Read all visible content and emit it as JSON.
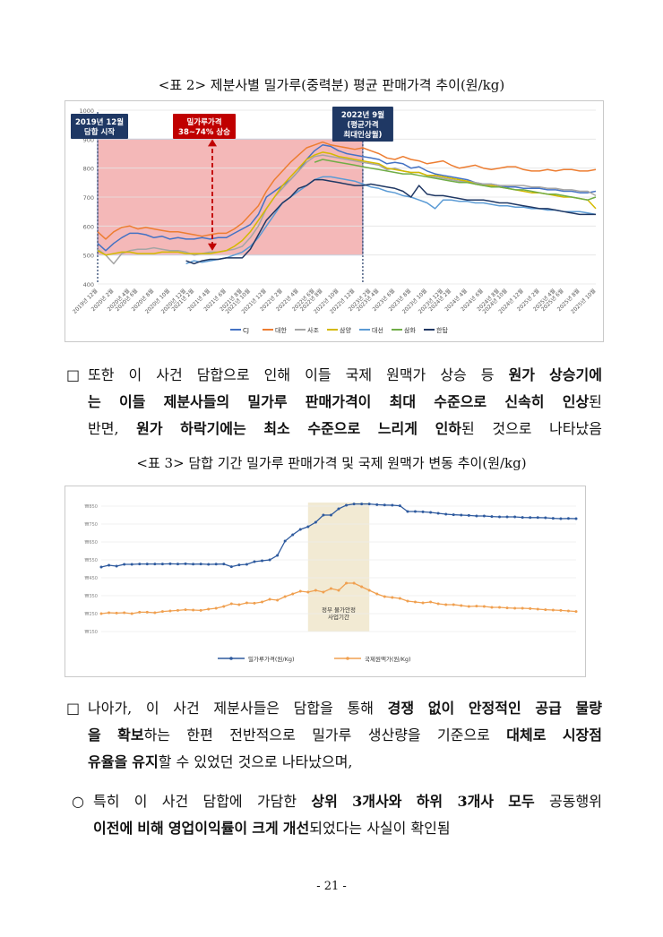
{
  "table2": {
    "caption": "<표 2> 제분사별 밀가루(중력분) 평균 판매가격 추이(원/kg)",
    "annotations": {
      "start": [
        "2019년 12월",
        "담합 시작"
      ],
      "rise": [
        "밀가루가격",
        "38~74% 상승"
      ],
      "peak": [
        "2022년 9월",
        "(평균가격",
        "최대인상월)"
      ]
    },
    "colors": {
      "annot_box": "#1f3864",
      "rise_box": "#c00000",
      "shade": "#f4b8b8"
    },
    "chart_data": {
      "type": "line",
      "ylim": [
        400,
        1000
      ],
      "yticks": [
        "400",
        "500",
        "600",
        "700",
        "800",
        "900",
        "1000"
      ],
      "xticks": [
        "2019년 12월",
        "2020년 2월",
        "2020년 4월",
        "2020년 6월",
        "2020년 8월",
        "2020년 10월",
        "2020년 12월",
        "2021년 2월",
        "2021년 4월",
        "2021년 6월",
        "2021년 8월",
        "2021년 10월",
        "2021년 12월",
        "2022년 2월",
        "2022년 4월",
        "2022년 6월",
        "2022년 8월",
        "2022년 10월",
        "2022년 12월",
        "2023년 2월",
        "2023년 4월",
        "2023년 6월",
        "2023년 8월",
        "2023년 10월",
        "2023년 12월",
        "2024년 2월",
        "2024년 4월",
        "2024년 6월",
        "2024년 8월",
        "2024년 10월",
        "2024년 12월",
        "2025년 2월",
        "2025년 4월",
        "2025년 6월",
        "2025년 8월",
        "2025년 10월"
      ],
      "series": [
        {
          "name": "CJ",
          "color": "#4472c4",
          "values": [
            540,
            515,
            540,
            560,
            575,
            575,
            570,
            560,
            565,
            555,
            560,
            555,
            555,
            560,
            555,
            560,
            560,
            575,
            590,
            605,
            640,
            700,
            720,
            740,
            760,
            790,
            830,
            860,
            880,
            875,
            860,
            850,
            845,
            840,
            835,
            830,
            815,
            820,
            815,
            800,
            805,
            790,
            780,
            775,
            770,
            765,
            760,
            750,
            745,
            745,
            740,
            735,
            735,
            730,
            730,
            730,
            725,
            725,
            720,
            720,
            715,
            715,
            720
          ]
        },
        {
          "name": "대한",
          "color": "#ed7d31",
          "values": [
            580,
            555,
            580,
            595,
            600,
            590,
            595,
            590,
            585,
            580,
            580,
            575,
            570,
            565,
            570,
            575,
            575,
            590,
            610,
            640,
            670,
            720,
            760,
            790,
            820,
            845,
            870,
            880,
            890,
            880,
            875,
            870,
            865,
            870,
            860,
            850,
            835,
            830,
            840,
            830,
            825,
            815,
            820,
            825,
            810,
            800,
            805,
            810,
            800,
            795,
            800,
            805,
            805,
            795,
            790,
            790,
            795,
            790,
            795,
            795,
            790,
            790,
            795
          ]
        },
        {
          "name": "사조",
          "color": "#a5a5a5",
          "values": [
            520,
            500,
            470,
            505,
            515,
            520,
            520,
            525,
            520,
            515,
            515,
            510,
            500,
            505,
            510,
            510,
            515,
            520,
            530,
            560,
            600,
            660,
            700,
            730,
            760,
            790,
            820,
            840,
            845,
            840,
            835,
            830,
            825,
            820,
            815,
            810,
            795,
            800,
            790,
            785,
            785,
            775,
            770,
            765,
            760,
            755,
            755,
            750,
            745,
            745,
            740,
            740,
            740,
            740,
            735,
            735,
            730,
            730,
            725,
            725,
            720,
            720,
            705
          ]
        },
        {
          "name": "삼양",
          "color": "#d4b900",
          "values": [
            515,
            500,
            505,
            510,
            510,
            505,
            505,
            505,
            510,
            510,
            510,
            505,
            505,
            505,
            505,
            510,
            515,
            530,
            550,
            580,
            620,
            660,
            700,
            740,
            770,
            800,
            830,
            845,
            855,
            850,
            840,
            835,
            830,
            825,
            820,
            815,
            800,
            795,
            790,
            785,
            785,
            775,
            775,
            770,
            765,
            760,
            755,
            745,
            740,
            740,
            735,
            730,
            725,
            720,
            715,
            715,
            710,
            705,
            700,
            700,
            695,
            690,
            660
          ]
        },
        {
          "name": "대선",
          "color": "#5b9bd5",
          "values": [
            null,
            null,
            null,
            null,
            null,
            null,
            null,
            null,
            null,
            null,
            null,
            470,
            480,
            475,
            480,
            485,
            490,
            500,
            510,
            530,
            560,
            600,
            640,
            680,
            700,
            720,
            740,
            760,
            770,
            770,
            765,
            760,
            755,
            745,
            735,
            730,
            720,
            715,
            705,
            700,
            690,
            680,
            660,
            690,
            690,
            685,
            685,
            680,
            680,
            675,
            670,
            670,
            665,
            665,
            660,
            660,
            655,
            655,
            650,
            650,
            650,
            645,
            640
          ]
        },
        {
          "name": "삼화",
          "color": "#70ad47",
          "values": [
            null,
            null,
            null,
            null,
            null,
            null,
            null,
            null,
            null,
            null,
            null,
            null,
            null,
            null,
            null,
            null,
            null,
            null,
            null,
            null,
            null,
            null,
            null,
            null,
            null,
            null,
            null,
            820,
            830,
            825,
            820,
            815,
            810,
            805,
            800,
            795,
            790,
            785,
            780,
            780,
            775,
            770,
            765,
            760,
            755,
            750,
            750,
            745,
            740,
            735,
            735,
            730,
            725,
            725,
            720,
            715,
            710,
            710,
            705,
            700,
            695,
            690,
            700
          ]
        },
        {
          "name": "한탑",
          "color": "#203864",
          "values": [
            null,
            null,
            null,
            null,
            null,
            null,
            null,
            null,
            null,
            null,
            null,
            480,
            470,
            480,
            485,
            485,
            490,
            490,
            490,
            520,
            570,
            620,
            650,
            680,
            700,
            730,
            740,
            760,
            760,
            755,
            750,
            745,
            740,
            740,
            745,
            740,
            735,
            730,
            720,
            700,
            740,
            710,
            705,
            705,
            700,
            695,
            690,
            690,
            690,
            685,
            680,
            680,
            675,
            670,
            665,
            660,
            660,
            655,
            650,
            645,
            640,
            640,
            640
          ]
        }
      ]
    }
  },
  "para1": {
    "lines": [
      "또한 이 사건 담합으로 인해 이들 국제 원맥가 상승 등 원가 상승기에",
      "는 이들 제분사들의 밀가루 판매가격이 최대 수준으로 신속히 인상된",
      "반면, 원가 하락기에는 최소 수준으로 느리게 인하된 것으로 나타났음"
    ]
  },
  "table3": {
    "caption": "<표 3> 담합 기간 밀가루 판매가격 및 국제 원맥가 변동 추이(원/kg)",
    "period_label": [
      "정부 물가안정",
      "사업기간"
    ],
    "colors": {
      "period_shade": "#f2ead3"
    },
    "chart_data": {
      "type": "line",
      "ylim": [
        150,
        850
      ],
      "yticks": [
        "150",
        "250",
        "350",
        "450",
        "550",
        "650",
        "750",
        "850"
      ],
      "series": [
        {
          "name": "밀가루가격(원/Kg)",
          "color": "#2e5a9e",
          "values": [
            510,
            520,
            515,
            525,
            525,
            527,
            527,
            527,
            527,
            528,
            527,
            528,
            526,
            527,
            525,
            526,
            527,
            512,
            522,
            525,
            540,
            545,
            550,
            575,
            655,
            690,
            720,
            735,
            760,
            800,
            800,
            835,
            855,
            862,
            862,
            862,
            858,
            856,
            855,
            852,
            820,
            820,
            818,
            815,
            810,
            805,
            802,
            800,
            798,
            795,
            795,
            792,
            790,
            790,
            790,
            787,
            786,
            786,
            785,
            782,
            780,
            781,
            780
          ]
        },
        {
          "name": "국제원맥가(원/Kg)",
          "color": "#f0a050",
          "values": [
            250,
            255,
            253,
            255,
            250,
            258,
            258,
            255,
            262,
            265,
            268,
            272,
            270,
            268,
            275,
            280,
            290,
            305,
            300,
            310,
            308,
            315,
            330,
            325,
            345,
            360,
            375,
            370,
            380,
            370,
            390,
            380,
            420,
            420,
            400,
            380,
            360,
            345,
            340,
            335,
            320,
            315,
            310,
            315,
            305,
            300,
            300,
            295,
            290,
            292,
            290,
            285,
            285,
            282,
            280,
            280,
            278,
            275,
            272,
            270,
            268,
            265,
            262
          ]
        }
      ]
    }
  },
  "para2": {
    "lines": [
      "나아가, 이 사건 제분사들은 담합을 통해 경쟁 없이 안정적인 공급 물량",
      "을 확보하는 한편 전반적으로 밀가루 생산량을 기준으로 대체로 시장점",
      "유율을 유지할 수 있었던 것으로 나타났으며,"
    ]
  },
  "para3": {
    "lines": [
      "특히 이 사건 담합에 가담한 상위 3개사와 하위 3개사 모두 공동행위",
      "이전에 비해 영업이익률이 크게 개선되었다는 사실이 확인됨"
    ]
  },
  "bullets": {
    "square": "□",
    "circle": "○"
  },
  "page_number": "- 21 -"
}
